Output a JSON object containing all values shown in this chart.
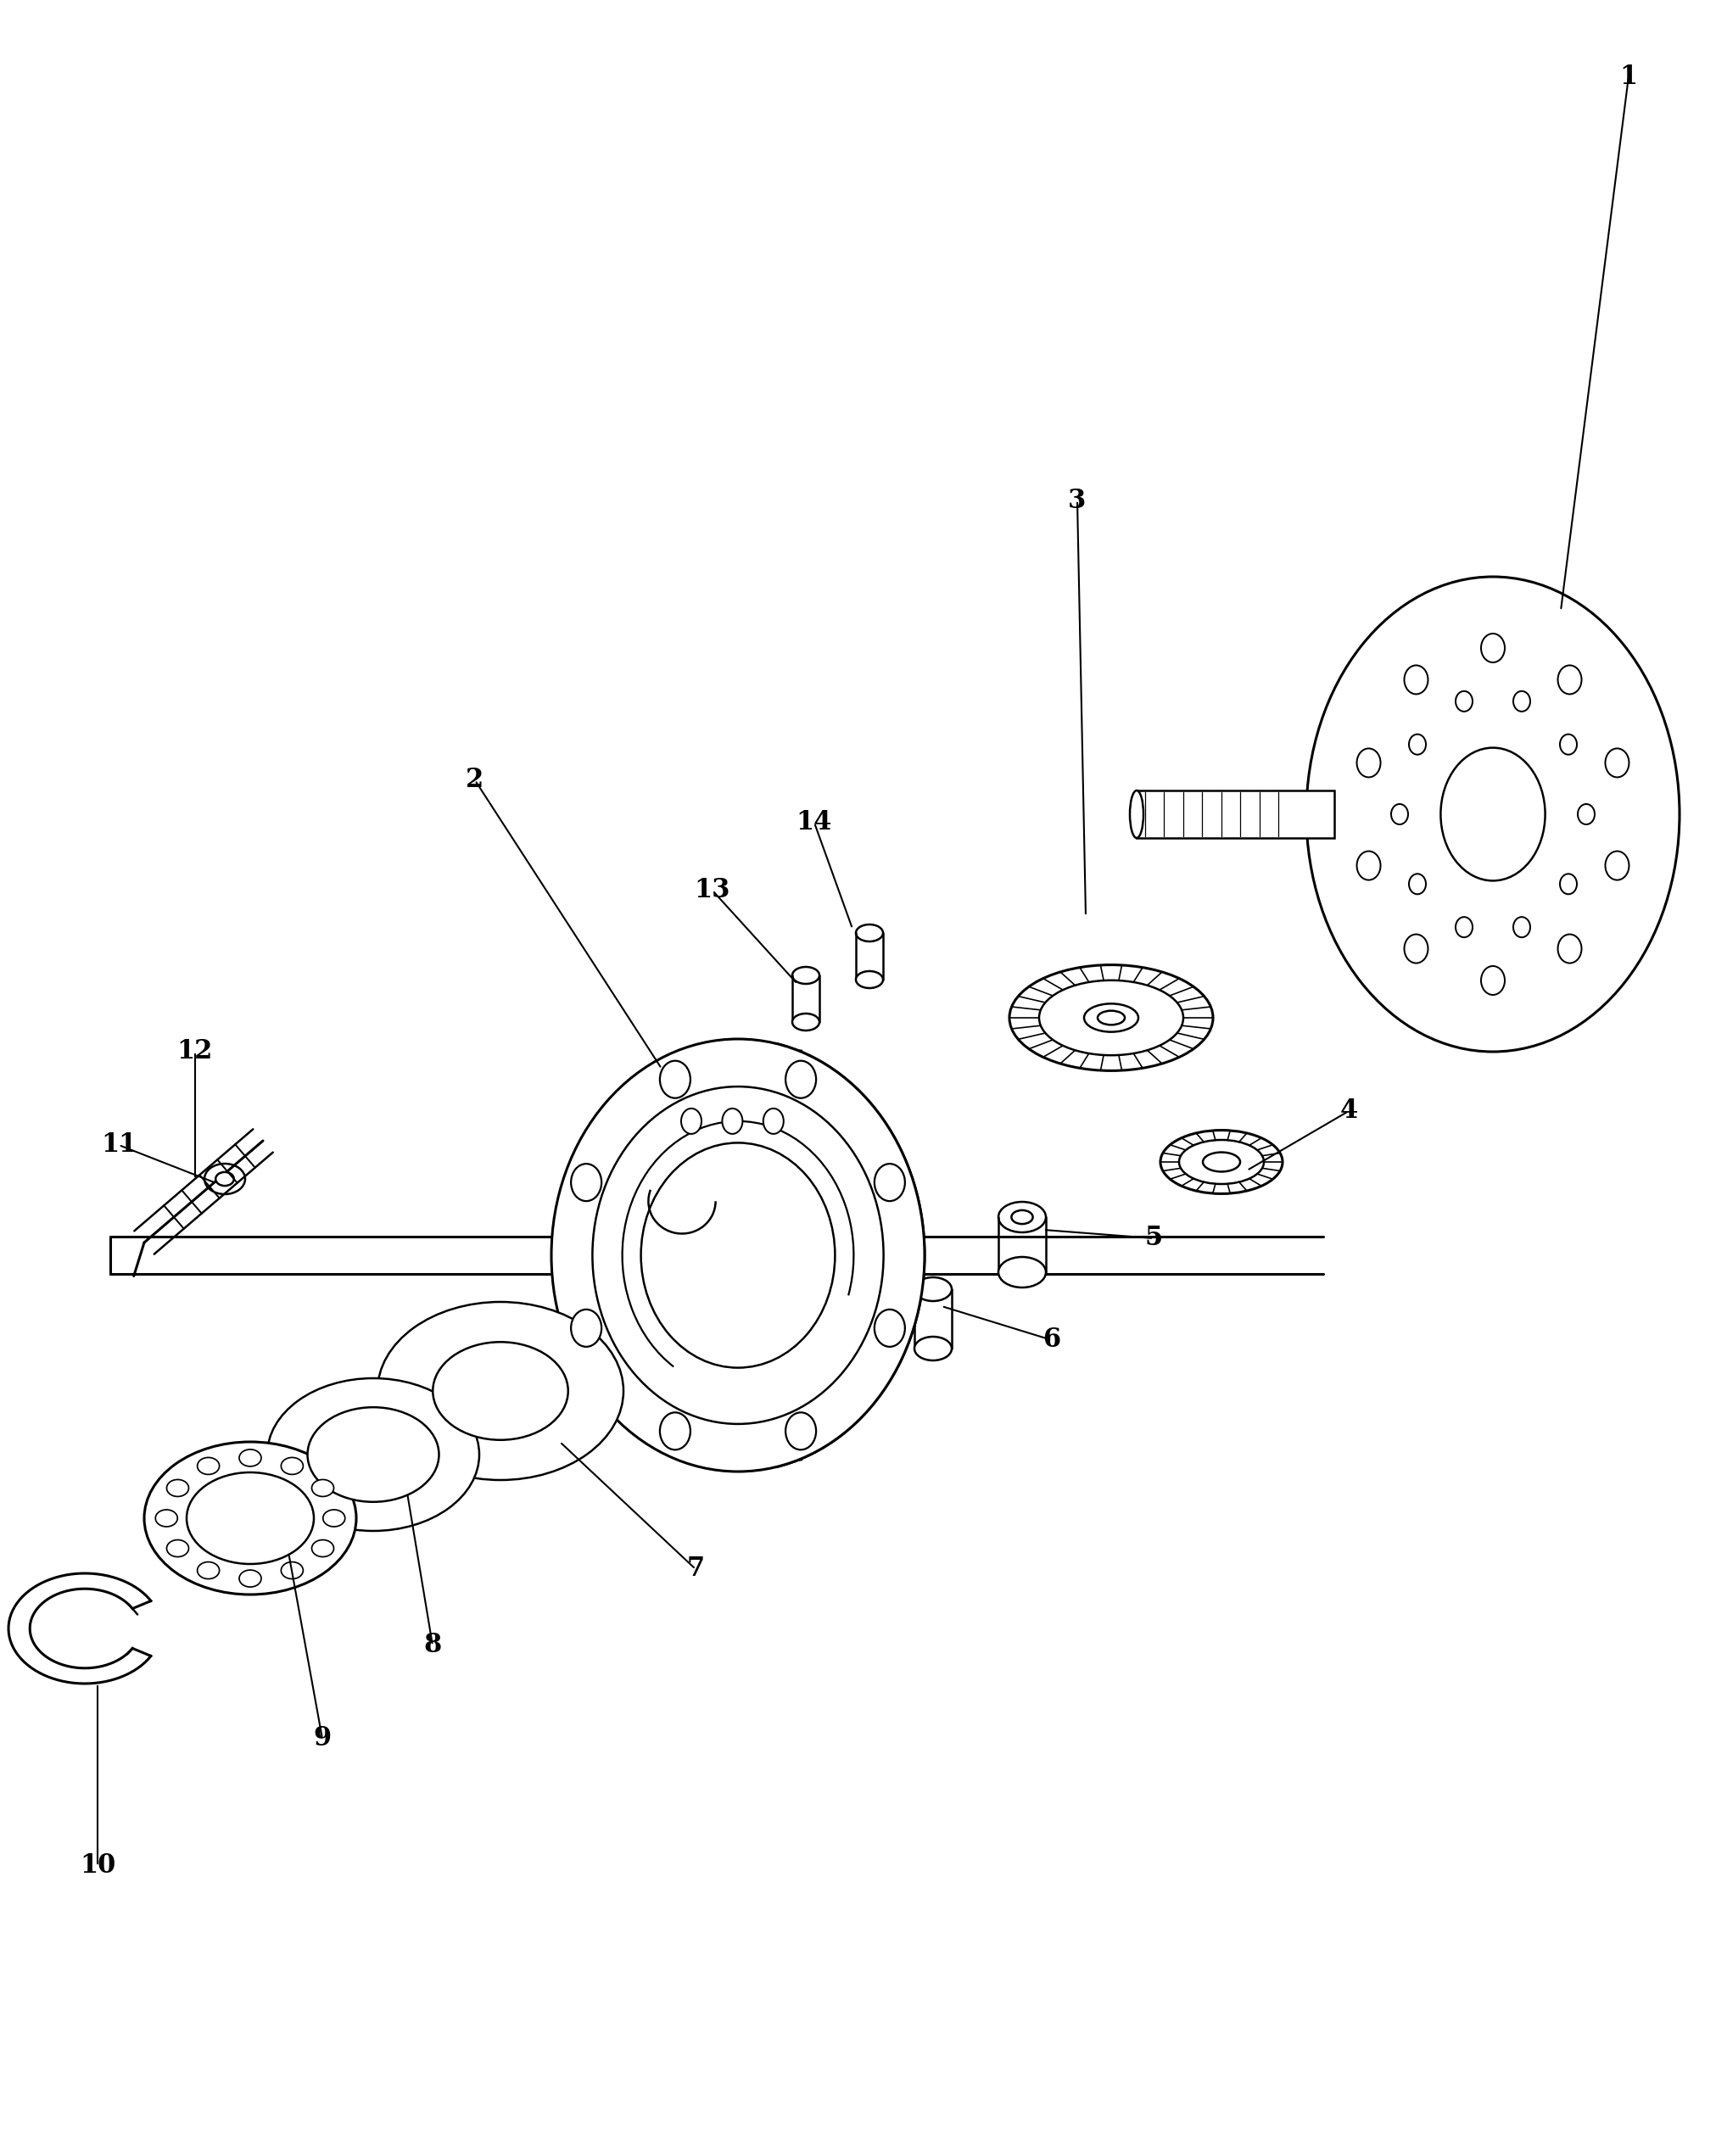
{
  "bg_color": "#ffffff",
  "line_color": "#000000",
  "fig_width": 20.24,
  "fig_height": 25.42,
  "lw": 1.8,
  "lw_thick": 2.2,
  "label_fontsize": 22
}
